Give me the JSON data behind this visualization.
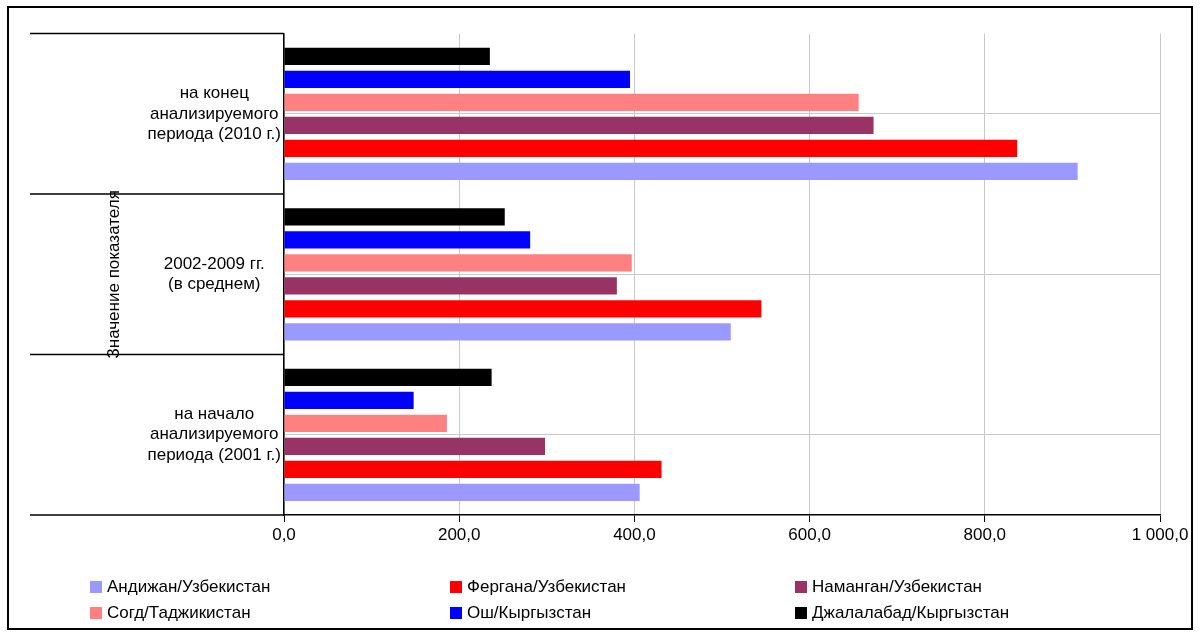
{
  "chart_data": {
    "type": "bar",
    "orientation": "horizontal",
    "ylabel": "Значение показателя",
    "categories": [
      "на конец анализируемого периода (2010 г.)",
      "2002-2009 гг. (в среднем)",
      "на начало анализируемого периода (2001 г.)"
    ],
    "series": [
      {
        "name": "Андижан/Узбекистан",
        "color": "#9999ff",
        "values": [
          906,
          510,
          406
        ]
      },
      {
        "name": "Фергана/Узбекистан",
        "color": "#ff0000",
        "values": [
          837,
          545,
          431
        ]
      },
      {
        "name": "Наманган/Узбекистан",
        "color": "#993366",
        "values": [
          673,
          380,
          298
        ]
      },
      {
        "name": "Согд/Таджикистан",
        "color": "#ff8080",
        "values": [
          656,
          397,
          186
        ]
      },
      {
        "name": "Ош/Кыргызстан",
        "color": "#0000ff",
        "values": [
          395,
          281,
          148
        ]
      },
      {
        "name": "Джалалабад/Кыргызстан",
        "color": "#000000",
        "values": [
          235,
          252,
          237
        ]
      }
    ],
    "xlim": [
      0,
      1000
    ],
    "xticks": [
      {
        "value": 0,
        "label": "0,0"
      },
      {
        "value": 200,
        "label": "200,0"
      },
      {
        "value": 400,
        "label": "400,0"
      },
      {
        "value": 600,
        "label": "600,0"
      },
      {
        "value": 800,
        "label": "800,0"
      },
      {
        "value": 1000,
        "label": "1 000,0"
      }
    ],
    "grid": true,
    "legend": "bottom"
  }
}
